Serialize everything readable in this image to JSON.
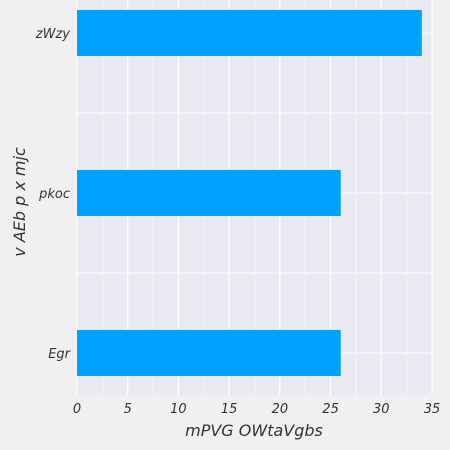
{
  "chart_data": {
    "type": "bar",
    "orientation": "horizontal",
    "title": "",
    "xlabel": "mPVG OWtaVgbs",
    "ylabel": "v AEb p x mjc",
    "categories": [
      "zWzy",
      "pkoc",
      "Egr"
    ],
    "values": [
      34,
      26,
      26
    ],
    "xlim": [
      0,
      35
    ],
    "xticks": [
      0,
      5,
      10,
      15,
      20,
      25,
      30,
      35
    ],
    "grid": true,
    "legend": "none",
    "bar_color": "#00a2ff",
    "plot_background": "#e9e9f2",
    "page_background": "#f0f0f0"
  }
}
